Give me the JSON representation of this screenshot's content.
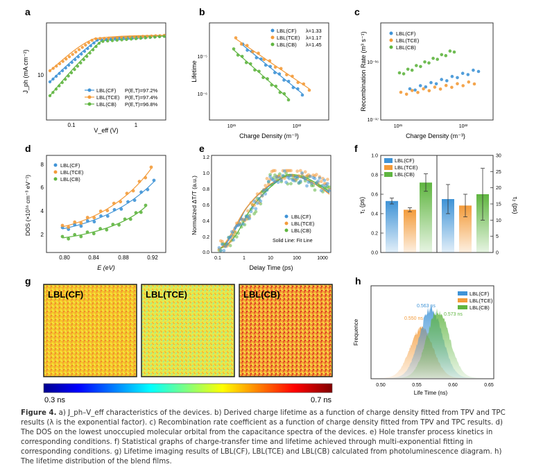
{
  "panels": {
    "a": {
      "letter": "a",
      "ylabel": "J_ph (mA cm⁻²)",
      "xlabel": "V_eff (V)",
      "yticks": [
        "10"
      ],
      "xticks": [
        "0.1",
        "1"
      ],
      "legend": [
        {
          "name": "LBL(CF)",
          "p": "P(E,T)=97.2%"
        },
        {
          "name": "LBL(TCE)",
          "p": "P(E,T)=97.4%"
        },
        {
          "name": "LBL(CB)",
          "p": "P(E,T)=96.8%"
        }
      ]
    },
    "b": {
      "letter": "b",
      "ylabel": "Lifetime",
      "xlabel": "Charge Density (m⁻³)",
      "yticks": [
        "10⁻⁵",
        "10⁻⁶"
      ],
      "xticks": [
        "10²¹",
        "10²²"
      ],
      "legend": [
        {
          "name": "LBL(CF)",
          "lambda": "λ=1.33"
        },
        {
          "name": "LBL(TCE)",
          "lambda": "λ=1.17"
        },
        {
          "name": "LBL(CB)",
          "lambda": "λ=1.45"
        }
      ]
    },
    "c": {
      "letter": "c",
      "ylabel": "Recombination Rate (m³ s⁻¹)",
      "xlabel": "Charge Density (m⁻³)",
      "yticks": [
        "10⁻¹⁶",
        "10⁻¹⁷"
      ],
      "xticks": [
        "10²¹",
        "10²²"
      ],
      "legend": [
        "LBL(CF)",
        "LBL(TCE)",
        "LBL(CB)"
      ]
    },
    "d": {
      "letter": "d",
      "ylabel": "DOS (×10¹⁶ cm⁻³ eV⁻¹)",
      "xlabel": "E (eV)",
      "yticks": [
        "8",
        "6",
        "4",
        "2"
      ],
      "xticks": [
        "0.80",
        "0.84",
        "0.88",
        "0.92"
      ],
      "legend": [
        "LBL(CF)",
        "LBL(TCE)",
        "LBL(CB)"
      ]
    },
    "e": {
      "letter": "e",
      "ylabel": "Normalized ΔT/T (a.u.)",
      "xlabel": "Delay Time (ps)",
      "yticks": [
        "1.2",
        "1.0",
        "0.8",
        "0.6",
        "0.4",
        "0.2",
        "0.0"
      ],
      "xticks": [
        "0.1",
        "1",
        "10",
        "100",
        "1000"
      ],
      "legend": [
        "LBL(CF)",
        "LBL(TCE)",
        "LBL(CB)"
      ],
      "note": "Solid Line: Fit Line"
    },
    "f": {
      "letter": "f",
      "ylabel_left": "τ₁ (ps)",
      "ylabel_right": "τ₂ (ps)",
      "yticks_left": [
        "1.0",
        "0.8",
        "0.6",
        "0.4",
        "0.2",
        "0.0"
      ],
      "yticks_right": [
        "30",
        "25",
        "20",
        "15",
        "10",
        "5",
        "0"
      ],
      "legend": [
        "LBL(CF)",
        "LBL(TCE)",
        "LBL(CB)"
      ]
    },
    "g": {
      "letter": "g",
      "maps": [
        "LBL(CF)",
        "LBL(TCE)",
        "LBL(CB)"
      ],
      "scale_min": "0.3 ns",
      "scale_max": "0.7 ns"
    },
    "h": {
      "letter": "h",
      "ylabel": "Frequence",
      "xlabel": "Life Time (ns)",
      "xticks": [
        "0.50",
        "0.55",
        "0.60",
        "0.65"
      ],
      "legend": [
        "LBL(CF)",
        "LBL(TCE)",
        "LBL(CB)"
      ],
      "peaks": [
        "0.563 ns",
        "0.550 ns",
        "0.573 ns"
      ]
    }
  },
  "chart_data": [
    {
      "panel": "a",
      "type": "scatter",
      "series": [
        {
          "name": "LBL(CF)",
          "color": "#3f93d6"
        },
        {
          "name": "LBL(TCE)",
          "color": "#f39b3a"
        },
        {
          "name": "LBL(CB)",
          "color": "#5fb540"
        }
      ]
    },
    {
      "panel": "b",
      "type": "scatter",
      "series": [
        {
          "name": "LBL(CF)",
          "lambda": 1.33
        },
        {
          "name": "LBL(TCE)",
          "lambda": 1.17
        },
        {
          "name": "LBL(CB)",
          "lambda": 1.45
        }
      ]
    },
    {
      "panel": "c",
      "type": "scatter",
      "series": [
        {
          "name": "LBL(CF)"
        },
        {
          "name": "LBL(TCE)"
        },
        {
          "name": "LBL(CB)"
        }
      ]
    },
    {
      "panel": "d",
      "type": "scatter",
      "series": [
        {
          "name": "LBL(CF)"
        },
        {
          "name": "LBL(TCE)"
        },
        {
          "name": "LBL(CB)"
        }
      ]
    },
    {
      "panel": "e",
      "type": "scatter",
      "series": [
        {
          "name": "LBL(CF)"
        },
        {
          "name": "LBL(TCE)"
        },
        {
          "name": "LBL(CB)"
        }
      ]
    },
    {
      "panel": "f",
      "type": "bar",
      "categories": [
        "LBL(CF)",
        "LBL(TCE)",
        "LBL(CB)"
      ],
      "series": [
        {
          "name": "tau1 (ps)",
          "values": [
            0.53,
            0.44,
            0.72
          ],
          "errors": [
            0.03,
            0.02,
            0.09
          ]
        },
        {
          "name": "tau2 (ps)",
          "values": [
            16.5,
            14.5,
            18.0
          ],
          "errors": [
            4.5,
            3.5,
            8.0
          ]
        }
      ],
      "ylim_left": [
        0,
        1.0
      ],
      "ylim_right": [
        0,
        30
      ]
    },
    {
      "panel": "h",
      "type": "area",
      "xlim": [
        0.48,
        0.65
      ],
      "series": [
        {
          "name": "LBL(CF)",
          "peak": 0.563
        },
        {
          "name": "LBL(TCE)",
          "peak": 0.55
        },
        {
          "name": "LBL(CB)",
          "peak": 0.573
        }
      ]
    }
  ],
  "caption": {
    "label": "Figure 4.",
    "text": " a) J_ph–V_eff characteristics of the devices. b) Derived charge lifetime as a function of charge density fitted from TPV and TPC results (λ is the exponential factor). c) Recombination rate coefficient as a function of charge density fitted from TPV and TPC results. d) The DOS on the lowest unoccupied molecular orbital from the capacitance spectra of the devices. e) Hole transfer process kinetics in corresponding conditions. f) Statistical graphs of charge-transfer time and lifetime achieved through multi-exponential fitting in corresponding conditions. g) Lifetime imaging results of LBL(CF), LBL(TCE) and LBL(CB) calculated from photoluminescence diagram. h) The lifetime distribution of the blend films."
  },
  "colors": {
    "cf": "#3f93d6",
    "tce": "#f39b3a",
    "cb": "#5fb540"
  }
}
